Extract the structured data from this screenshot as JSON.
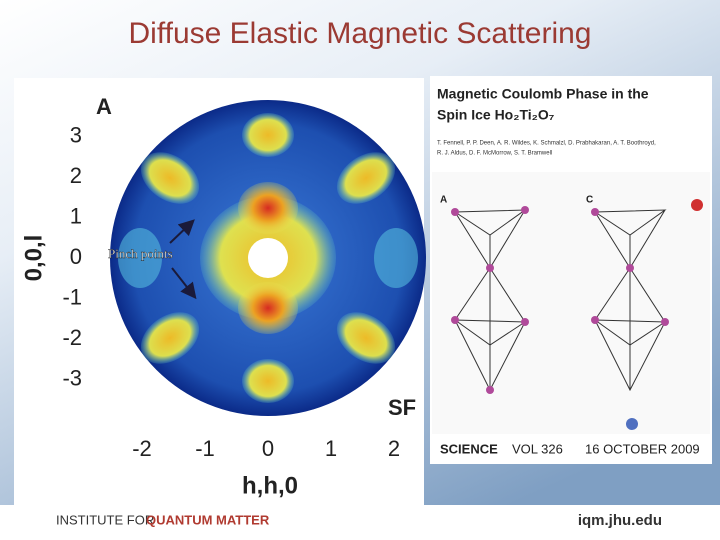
{
  "slide": {
    "title": "Diffuse Elastic Magnetic Scattering",
    "figure": {
      "panel_label": "A",
      "y_label": "0,0,l",
      "x_label": "h,h,0",
      "yticks": [
        3,
        2,
        1,
        0,
        -1,
        -2,
        -3
      ],
      "xticks": [
        -2,
        -1,
        0,
        1,
        2
      ],
      "corner_label": "SF",
      "annotation": "Pinch points"
    },
    "article": {
      "title_lines": [
        "Magnetic Coulomb Phase in the",
        "Spin Ice Ho₂Ti₂O₇"
      ],
      "author_lines": [
        "T. Fennell, P. P. Deen, A. R. Wildes, K. Schmalzl, D. Prabhakaran, A. T. Boothroyd,",
        "R. J. Aldus, D. F. McMorrow, S. T. Bramwell"
      ],
      "panel_labels": [
        "A",
        "C"
      ],
      "journal": "SCIENCE",
      "volume": "VOL 326",
      "date": "16 OCTOBER 2009"
    },
    "footer": {
      "institute_plain": "INSTITUTE FOR",
      "institute_color": "QUANTUM MATTER",
      "url": "iqm.jhu.edu"
    }
  }
}
